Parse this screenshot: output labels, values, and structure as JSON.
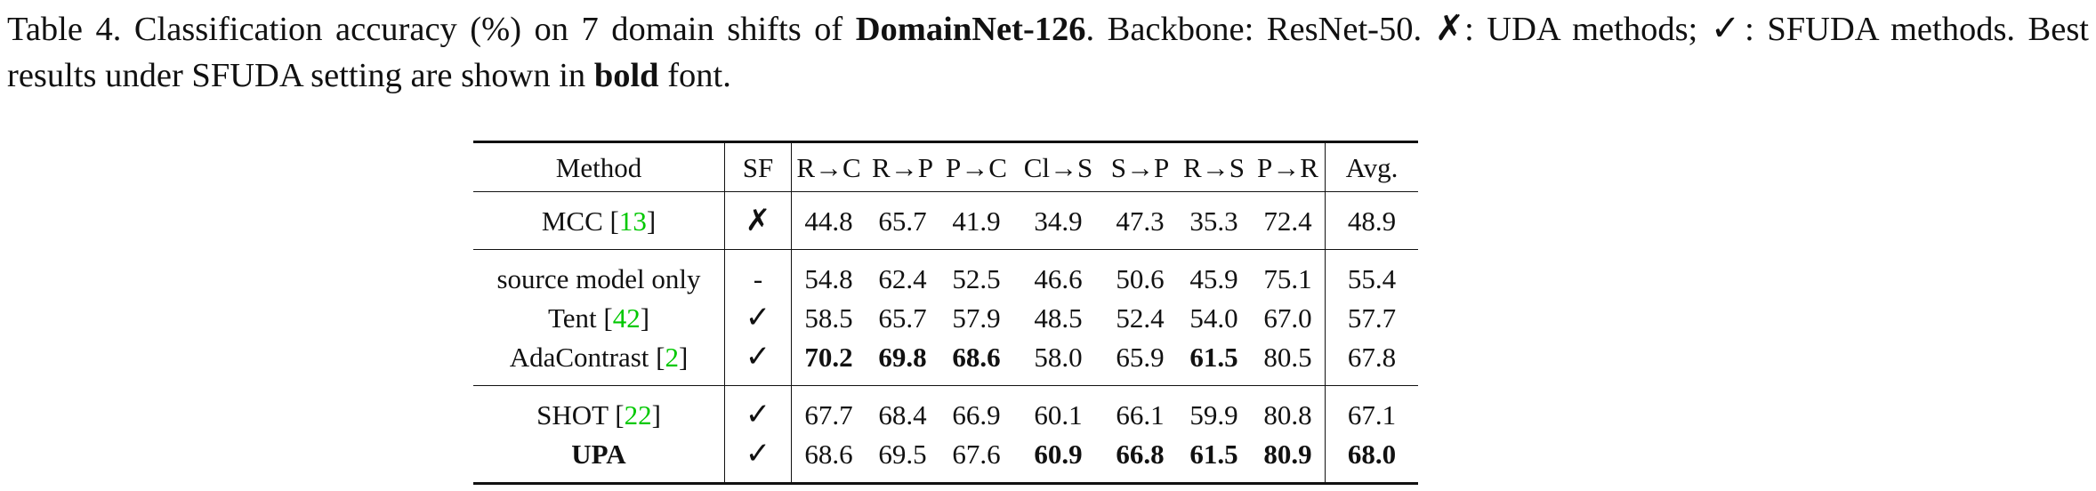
{
  "caption": {
    "label": "Table 4.",
    "text_a": "Classification accuracy (%) on 7 domain shifts of",
    "dataset": "DomainNet-126",
    "text_b": ". Backbone: ResNet-50.",
    "cross_mark": "✗",
    "text_c": ": UDA methods;",
    "check_mark": "✓",
    "text_d": ": SFUDA methods. Best results under SFUDA setting are shown in",
    "bold_word": "bold",
    "text_e": "font."
  },
  "table": {
    "headers": [
      "Method",
      "SF",
      "R→C",
      "R→P",
      "P→C",
      "Cl→S",
      "S→P",
      "R→S",
      "P→R",
      "Avg."
    ],
    "rows": [
      {
        "method": "MCC",
        "ref": "13",
        "sf": "✗",
        "values": [
          "44.8",
          "65.7",
          "41.9",
          "34.9",
          "47.3",
          "35.3",
          "72.4",
          "48.9"
        ],
        "bold": []
      },
      {
        "method": "source model only",
        "ref": "",
        "sf": "-",
        "values": [
          "54.8",
          "62.4",
          "52.5",
          "46.6",
          "50.6",
          "45.9",
          "75.1",
          "55.4"
        ],
        "bold": []
      },
      {
        "method": "Tent",
        "ref": "42",
        "sf": "✓",
        "values": [
          "58.5",
          "65.7",
          "57.9",
          "48.5",
          "52.4",
          "54.0",
          "67.0",
          "57.7"
        ],
        "bold": []
      },
      {
        "method": "AdaContrast",
        "ref": "2",
        "sf": "✓",
        "values": [
          "70.2",
          "69.8",
          "68.6",
          "58.0",
          "65.9",
          "61.5",
          "80.5",
          "67.8"
        ],
        "bold": [
          0,
          1,
          2,
          5
        ]
      },
      {
        "method": "SHOT",
        "ref": "22",
        "sf": "✓",
        "values": [
          "67.7",
          "68.4",
          "66.9",
          "60.1",
          "66.1",
          "59.9",
          "80.8",
          "67.1"
        ],
        "bold": []
      },
      {
        "method": "UPA",
        "ref": "",
        "sf": "✓",
        "values": [
          "68.6",
          "69.5",
          "67.6",
          "60.9",
          "66.8",
          "61.5",
          "80.9",
          "68.0"
        ],
        "bold": [
          3,
          4,
          5,
          6,
          7
        ],
        "method_bold": true
      }
    ]
  }
}
